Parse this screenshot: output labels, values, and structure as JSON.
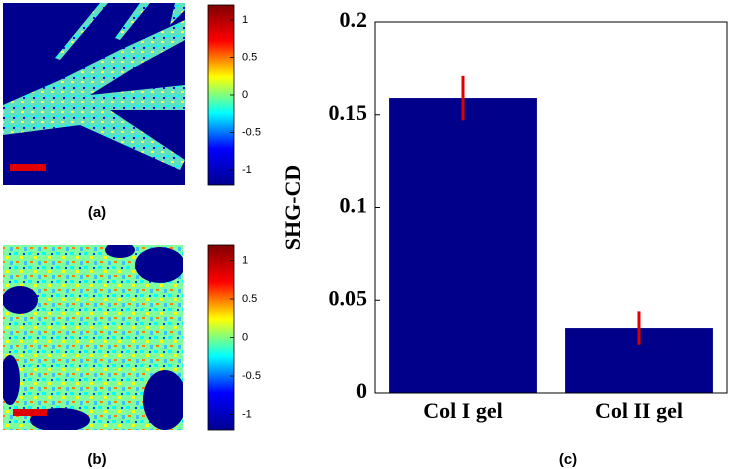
{
  "chart_data": [
    {
      "type": "image",
      "caption": "(a)",
      "colormap": [
        "#00008f",
        "#0000ff",
        "#00ffff",
        "#ffff00",
        "#ff0000",
        "#800000"
      ],
      "clim": [
        -1.2,
        1.2
      ],
      "cticks": [
        1,
        0.5,
        0,
        -0.5,
        -1
      ]
    },
    {
      "type": "image",
      "caption": "(b)",
      "colormap": [
        "#00008f",
        "#0000ff",
        "#00ffff",
        "#ffff00",
        "#ff0000",
        "#800000"
      ],
      "clim": [
        -1.2,
        1.2
      ],
      "cticks": [
        1,
        0.5,
        0,
        -0.5,
        -1
      ]
    },
    {
      "type": "bar",
      "caption": "(c)",
      "ylabel": "SHG-CD",
      "categories": [
        "Col I gel",
        "Col II gel"
      ],
      "values": [
        0.159,
        0.035
      ],
      "errors": [
        0.012,
        0.009
      ],
      "color": "#00008b",
      "error_color": "#e00000",
      "ylim": [
        0,
        0.2
      ],
      "yticks": [
        0,
        0.05,
        0.1,
        0.15,
        0.2
      ]
    }
  ]
}
